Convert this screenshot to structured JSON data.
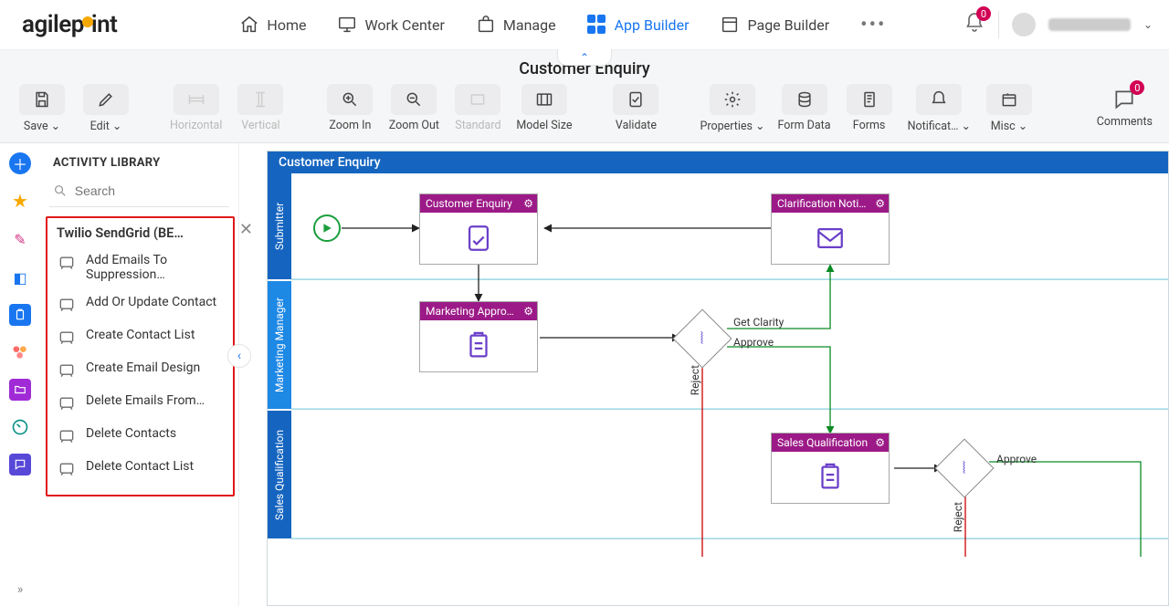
{
  "brand": "agilepoint",
  "nav": {
    "items": [
      {
        "label": "Home"
      },
      {
        "label": "Work Center"
      },
      {
        "label": "Manage"
      },
      {
        "label": "App Builder",
        "active": true
      },
      {
        "label": "Page Builder"
      }
    ],
    "notifications_count": "0"
  },
  "secondary": {
    "document_title": "Customer Enquiry",
    "toolbar": {
      "save": "Save",
      "edit": "Edit",
      "horizontal": "Horizontal",
      "vertical": "Vertical",
      "zoom_in": "Zoom In",
      "zoom_out": "Zoom Out",
      "standard": "Standard",
      "model_size": "Model Size",
      "validate": "Validate",
      "properties": "Properties",
      "form_data": "Form Data",
      "forms": "Forms",
      "notifications": "Notificat…",
      "misc": "Misc",
      "comments": "Comments",
      "comments_count": "0"
    }
  },
  "library": {
    "title": "ACTIVITY LIBRARY",
    "search_placeholder": "Search",
    "group_title": "Twilio SendGrid (BE…",
    "items": [
      "Add Emails To Suppression…",
      "Add Or Update Contact",
      "Create Contact List",
      "Create Email Design",
      "Delete Emails From…",
      "Delete Contacts",
      "Delete Contact List"
    ]
  },
  "process": {
    "title": "Customer Enquiry",
    "lanes": [
      "Submitter",
      "Marketing Manager",
      "Sales Qualification"
    ],
    "nodes": {
      "customer_enquiry": "Customer Enquiry",
      "clarification": "Clarification Notifi…",
      "marketing_approval": "Marketing Approval",
      "sales_qualification": "Sales Qualification"
    },
    "edge_labels": {
      "get_clarity": "Get Clarity",
      "approve": "Approve",
      "reject": "Reject",
      "approve2": "Approve",
      "reject2": "Reject"
    }
  }
}
